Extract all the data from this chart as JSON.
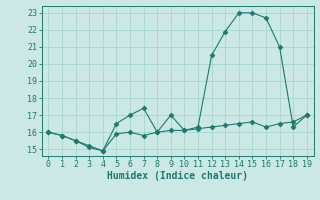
{
  "x": [
    0,
    1,
    2,
    3,
    4,
    5,
    6,
    7,
    8,
    9,
    10,
    11,
    12,
    13,
    14,
    15,
    16,
    17,
    18,
    19
  ],
  "y_main": [
    16.0,
    15.8,
    15.5,
    15.2,
    14.9,
    16.5,
    17.0,
    17.4,
    16.0,
    17.0,
    16.1,
    16.3,
    20.5,
    21.9,
    23.0,
    23.0,
    22.7,
    21.0,
    16.3,
    17.0
  ],
  "y_flat": [
    16.0,
    15.8,
    15.5,
    15.1,
    14.9,
    15.9,
    16.0,
    15.8,
    16.0,
    16.1,
    16.1,
    16.2,
    16.3,
    16.4,
    16.5,
    16.6,
    16.3,
    16.5,
    16.6,
    17.0
  ],
  "line_color": "#1a7a6e",
  "bg_color": "#cce8e5",
  "grid_color": "#a8d5d0",
  "xlabel": "Humidex (Indice chaleur)",
  "ylim": [
    14.6,
    23.4
  ],
  "xlim": [
    -0.5,
    19.5
  ],
  "yticks": [
    15,
    16,
    17,
    18,
    19,
    20,
    21,
    22,
    23
  ],
  "xticks": [
    0,
    1,
    2,
    3,
    4,
    5,
    6,
    7,
    8,
    9,
    10,
    11,
    12,
    13,
    14,
    15,
    16,
    17,
    18,
    19
  ],
  "xlabel_fontsize": 7.0,
  "tick_fontsize": 6.0,
  "marker_size": 2.5,
  "line_width": 0.8
}
